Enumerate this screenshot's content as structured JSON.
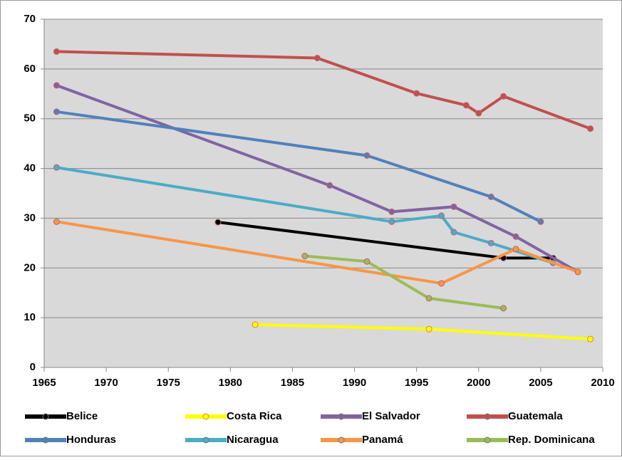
{
  "chart_data": {
    "type": "line",
    "xlim": [
      1965,
      2010
    ],
    "xticks": [
      1965,
      1970,
      1975,
      1980,
      1985,
      1990,
      1995,
      2000,
      2005,
      2010
    ],
    "ylim": [
      0,
      70
    ],
    "yticks": [
      0,
      10,
      20,
      30,
      40,
      50,
      60,
      70
    ],
    "grid": true,
    "series": [
      {
        "name": "Belice",
        "color": "#000000",
        "x": [
          1979,
          2002,
          2006
        ],
        "values": [
          29.2,
          22,
          22
        ]
      },
      {
        "name": "Costa Rica",
        "color": "#ffff00",
        "x": [
          1982,
          1996,
          2009
        ],
        "values": [
          8.6,
          7.7,
          5.7
        ]
      },
      {
        "name": "El Salvador",
        "color": "#8064a2",
        "x": [
          1966,
          1988,
          1993,
          1998,
          2003,
          2008
        ],
        "values": [
          56.7,
          36.6,
          31.3,
          32.3,
          26.3,
          19.2
        ]
      },
      {
        "name": "Guatemala",
        "color": "#c0504d",
        "x": [
          1966,
          1987,
          1995,
          1999,
          2000,
          2002,
          2009
        ],
        "values": [
          63.5,
          62.2,
          55.1,
          52.7,
          51.1,
          54.5,
          48
        ]
      },
      {
        "name": "Honduras",
        "color": "#4f81bd",
        "x": [
          1966,
          1991,
          2001,
          2005
        ],
        "values": [
          51.4,
          42.6,
          34.3,
          29.3
        ]
      },
      {
        "name": "Nicaragua",
        "color": "#4bacc6",
        "x": [
          1966,
          1993,
          1997,
          1998,
          2001,
          2006
        ],
        "values": [
          40.2,
          29.3,
          30.5,
          27.2,
          25,
          21
        ]
      },
      {
        "name": "Panamá",
        "color": "#f79646",
        "x": [
          1966,
          1997,
          2003,
          2008
        ],
        "values": [
          29.3,
          16.9,
          23.8,
          19.2
        ]
      },
      {
        "name": "Rep. Dominicana",
        "color": "#9bbb59",
        "x": [
          1986,
          1991,
          1996,
          2002
        ],
        "values": [
          22.4,
          21.3,
          13.9,
          11.9
        ]
      }
    ]
  }
}
